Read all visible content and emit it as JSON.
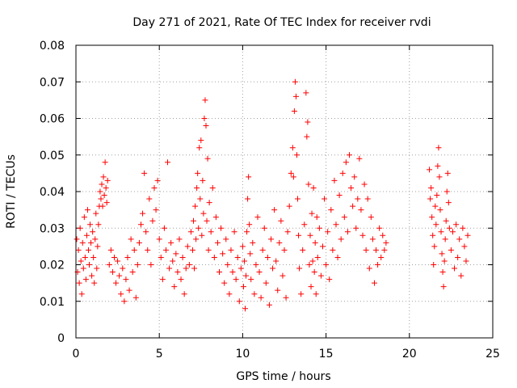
{
  "chart_data": {
    "type": "scatter",
    "title": "Day 271 of 2021, Rate Of TEC Index for receiver rvdi",
    "xlabel": "GPS time / hours",
    "ylabel": "ROTI / TECUs",
    "xlim": [
      0,
      25
    ],
    "ylim": [
      0,
      0.08
    ],
    "x_ticks": [
      "0",
      "5",
      "10",
      "15",
      "20",
      "25"
    ],
    "y_ticks": [
      "0",
      "0.01",
      "0.02",
      "0.03",
      "0.04",
      "0.05",
      "0.06",
      "0.07",
      "0.08"
    ],
    "grid": true,
    "marker": "plus",
    "color": "#ff0000",
    "legend": "none",
    "series": [
      {
        "points": [
          [
            0.05,
            0.027
          ],
          [
            0.1,
            0.018
          ],
          [
            0.15,
            0.024
          ],
          [
            0.2,
            0.015
          ],
          [
            0.25,
            0.03
          ],
          [
            0.3,
            0.021
          ],
          [
            0.35,
            0.012
          ],
          [
            0.4,
            0.026
          ],
          [
            0.45,
            0.019
          ],
          [
            0.5,
            0.033
          ],
          [
            0.55,
            0.022
          ],
          [
            0.6,
            0.016
          ],
          [
            0.65,
            0.028
          ],
          [
            0.7,
            0.035
          ],
          [
            0.75,
            0.024
          ],
          [
            0.8,
            0.02
          ],
          [
            0.85,
            0.031
          ],
          [
            0.9,
            0.026
          ],
          [
            0.95,
            0.017
          ],
          [
            1.0,
            0.029
          ],
          [
            1.05,
            0.022
          ],
          [
            1.1,
            0.015
          ],
          [
            1.15,
            0.027
          ],
          [
            1.2,
            0.034
          ],
          [
            1.25,
            0.019
          ],
          [
            1.3,
            0.025
          ],
          [
            1.35,
            0.031
          ],
          [
            1.4,
            0.036
          ],
          [
            1.45,
            0.04
          ],
          [
            1.5,
            0.038
          ],
          [
            1.55,
            0.042
          ],
          [
            1.6,
            0.036
          ],
          [
            1.65,
            0.044
          ],
          [
            1.7,
            0.039
          ],
          [
            1.75,
            0.048
          ],
          [
            1.8,
            0.041
          ],
          [
            1.85,
            0.037
          ],
          [
            1.9,
            0.043
          ],
          [
            2.0,
            0.02
          ],
          [
            2.1,
            0.024
          ],
          [
            2.2,
            0.018
          ],
          [
            2.3,
            0.022
          ],
          [
            2.4,
            0.015
          ],
          [
            2.5,
            0.021
          ],
          [
            2.6,
            0.017
          ],
          [
            2.7,
            0.012
          ],
          [
            2.8,
            0.019
          ],
          [
            2.9,
            0.01
          ],
          [
            3.0,
            0.016
          ],
          [
            3.1,
            0.022
          ],
          [
            3.2,
            0.013
          ],
          [
            3.3,
            0.027
          ],
          [
            3.4,
            0.018
          ],
          [
            3.5,
            0.024
          ],
          [
            3.6,
            0.011
          ],
          [
            3.7,
            0.02
          ],
          [
            3.8,
            0.026
          ],
          [
            3.9,
            0.031
          ],
          [
            4.0,
            0.034
          ],
          [
            4.1,
            0.045
          ],
          [
            4.2,
            0.029
          ],
          [
            4.3,
            0.024
          ],
          [
            4.4,
            0.038
          ],
          [
            4.5,
            0.02
          ],
          [
            4.6,
            0.032
          ],
          [
            4.7,
            0.041
          ],
          [
            4.8,
            0.035
          ],
          [
            4.9,
            0.043
          ],
          [
            5.0,
            0.027
          ],
          [
            5.1,
            0.022
          ],
          [
            5.2,
            0.016
          ],
          [
            5.3,
            0.03
          ],
          [
            5.4,
            0.024
          ],
          [
            5.5,
            0.048
          ],
          [
            5.6,
            0.019
          ],
          [
            5.7,
            0.026
          ],
          [
            5.8,
            0.021
          ],
          [
            5.9,
            0.014
          ],
          [
            6.0,
            0.023
          ],
          [
            6.1,
            0.018
          ],
          [
            6.2,
            0.027
          ],
          [
            6.3,
            0.016
          ],
          [
            6.4,
            0.022
          ],
          [
            6.5,
            0.012
          ],
          [
            6.6,
            0.019
          ],
          [
            6.7,
            0.025
          ],
          [
            6.8,
            0.02
          ],
          [
            6.9,
            0.029
          ],
          [
            7.0,
            0.024
          ],
          [
            7.05,
            0.032
          ],
          [
            7.1,
            0.019
          ],
          [
            7.15,
            0.036
          ],
          [
            7.2,
            0.027
          ],
          [
            7.25,
            0.041
          ],
          [
            7.3,
            0.045
          ],
          [
            7.35,
            0.03
          ],
          [
            7.4,
            0.052
          ],
          [
            7.45,
            0.038
          ],
          [
            7.5,
            0.054
          ],
          [
            7.55,
            0.028
          ],
          [
            7.6,
            0.043
          ],
          [
            7.65,
            0.034
          ],
          [
            7.7,
            0.06
          ],
          [
            7.75,
            0.065
          ],
          [
            7.8,
            0.058
          ],
          [
            7.85,
            0.032
          ],
          [
            7.9,
            0.049
          ],
          [
            7.95,
            0.024
          ],
          [
            8.0,
            0.037
          ],
          [
            8.1,
            0.029
          ],
          [
            8.2,
            0.041
          ],
          [
            8.3,
            0.022
          ],
          [
            8.4,
            0.033
          ],
          [
            8.5,
            0.026
          ],
          [
            8.6,
            0.018
          ],
          [
            8.7,
            0.03
          ],
          [
            8.8,
            0.023
          ],
          [
            8.9,
            0.015
          ],
          [
            9.0,
            0.027
          ],
          [
            9.1,
            0.02
          ],
          [
            9.2,
            0.012
          ],
          [
            9.3,
            0.024
          ],
          [
            9.4,
            0.018
          ],
          [
            9.5,
            0.029
          ],
          [
            9.6,
            0.016
          ],
          [
            9.7,
            0.022
          ],
          [
            9.8,
            0.01
          ],
          [
            9.9,
            0.019
          ],
          [
            10.0,
            0.025
          ],
          [
            10.05,
            0.014
          ],
          [
            10.1,
            0.021
          ],
          [
            10.15,
            0.008
          ],
          [
            10.2,
            0.017
          ],
          [
            10.25,
            0.029
          ],
          [
            10.3,
            0.038
          ],
          [
            10.35,
            0.044
          ],
          [
            10.4,
            0.031
          ],
          [
            10.45,
            0.023
          ],
          [
            10.5,
            0.016
          ],
          [
            10.6,
            0.026
          ],
          [
            10.7,
            0.012
          ],
          [
            10.8,
            0.02
          ],
          [
            10.9,
            0.033
          ],
          [
            11.0,
            0.018
          ],
          [
            11.1,
            0.011
          ],
          [
            11.2,
            0.024
          ],
          [
            11.3,
            0.03
          ],
          [
            11.4,
            0.015
          ],
          [
            11.5,
            0.022
          ],
          [
            11.6,
            0.009
          ],
          [
            11.7,
            0.027
          ],
          [
            11.8,
            0.019
          ],
          [
            11.9,
            0.035
          ],
          [
            12.0,
            0.021
          ],
          [
            12.1,
            0.013
          ],
          [
            12.2,
            0.026
          ],
          [
            12.3,
            0.032
          ],
          [
            12.4,
            0.017
          ],
          [
            12.5,
            0.024
          ],
          [
            12.6,
            0.011
          ],
          [
            12.7,
            0.029
          ],
          [
            12.8,
            0.036
          ],
          [
            12.9,
            0.045
          ],
          [
            13.0,
            0.052
          ],
          [
            13.05,
            0.044
          ],
          [
            13.1,
            0.062
          ],
          [
            13.15,
            0.07
          ],
          [
            13.2,
            0.066
          ],
          [
            13.25,
            0.05
          ],
          [
            13.3,
            0.038
          ],
          [
            13.35,
            0.028
          ],
          [
            13.4,
            0.019
          ],
          [
            13.5,
            0.012
          ],
          [
            13.6,
            0.024
          ],
          [
            13.7,
            0.031
          ],
          [
            13.8,
            0.067
          ],
          [
            13.85,
            0.055
          ],
          [
            13.9,
            0.059
          ],
          [
            13.95,
            0.042
          ],
          [
            14.0,
            0.02
          ],
          [
            14.05,
            0.028
          ],
          [
            14.1,
            0.014
          ],
          [
            14.15,
            0.034
          ],
          [
            14.2,
            0.021
          ],
          [
            14.25,
            0.041
          ],
          [
            14.3,
            0.018
          ],
          [
            14.35,
            0.026
          ],
          [
            14.4,
            0.012
          ],
          [
            14.45,
            0.033
          ],
          [
            14.5,
            0.022
          ],
          [
            14.6,
            0.03
          ],
          [
            14.7,
            0.017
          ],
          [
            14.8,
            0.025
          ],
          [
            14.9,
            0.038
          ],
          [
            15.0,
            0.02
          ],
          [
            15.1,
            0.029
          ],
          [
            15.2,
            0.016
          ],
          [
            15.3,
            0.035
          ],
          [
            15.4,
            0.024
          ],
          [
            15.5,
            0.043
          ],
          [
            15.6,
            0.031
          ],
          [
            15.7,
            0.022
          ],
          [
            15.8,
            0.039
          ],
          [
            15.9,
            0.027
          ],
          [
            16.0,
            0.045
          ],
          [
            16.1,
            0.033
          ],
          [
            16.2,
            0.048
          ],
          [
            16.3,
            0.029
          ],
          [
            16.4,
            0.05
          ],
          [
            16.5,
            0.041
          ],
          [
            16.6,
            0.036
          ],
          [
            16.7,
            0.044
          ],
          [
            16.8,
            0.03
          ],
          [
            16.9,
            0.038
          ],
          [
            17.0,
            0.049
          ],
          [
            17.1,
            0.035
          ],
          [
            17.2,
            0.028
          ],
          [
            17.3,
            0.042
          ],
          [
            17.4,
            0.024
          ],
          [
            17.5,
            0.038
          ],
          [
            17.6,
            0.019
          ],
          [
            17.7,
            0.033
          ],
          [
            17.8,
            0.027
          ],
          [
            17.9,
            0.015
          ],
          [
            18.0,
            0.024
          ],
          [
            18.1,
            0.02
          ],
          [
            18.2,
            0.03
          ],
          [
            18.3,
            0.022
          ],
          [
            18.4,
            0.028
          ],
          [
            18.5,
            0.024
          ],
          [
            18.6,
            0.026
          ],
          [
            21.2,
            0.046
          ],
          [
            21.25,
            0.038
          ],
          [
            21.3,
            0.041
          ],
          [
            21.35,
            0.033
          ],
          [
            21.4,
            0.028
          ],
          [
            21.45,
            0.02
          ],
          [
            21.5,
            0.025
          ],
          [
            21.55,
            0.036
          ],
          [
            21.6,
            0.031
          ],
          [
            21.65,
            0.039
          ],
          [
            21.7,
            0.047
          ],
          [
            21.75,
            0.052
          ],
          [
            21.8,
            0.044
          ],
          [
            21.85,
            0.035
          ],
          [
            21.9,
            0.029
          ],
          [
            21.95,
            0.023
          ],
          [
            22.0,
            0.018
          ],
          [
            22.05,
            0.014
          ],
          [
            22.1,
            0.021
          ],
          [
            22.15,
            0.027
          ],
          [
            22.2,
            0.032
          ],
          [
            22.25,
            0.04
          ],
          [
            22.3,
            0.045
          ],
          [
            22.35,
            0.037
          ],
          [
            22.4,
            0.03
          ],
          [
            22.5,
            0.024
          ],
          [
            22.6,
            0.029
          ],
          [
            22.7,
            0.019
          ],
          [
            22.8,
            0.031
          ],
          [
            22.9,
            0.022
          ],
          [
            23.0,
            0.027
          ],
          [
            23.1,
            0.017
          ],
          [
            23.2,
            0.03
          ],
          [
            23.3,
            0.025
          ],
          [
            23.4,
            0.021
          ],
          [
            23.5,
            0.028
          ]
        ]
      }
    ]
  }
}
